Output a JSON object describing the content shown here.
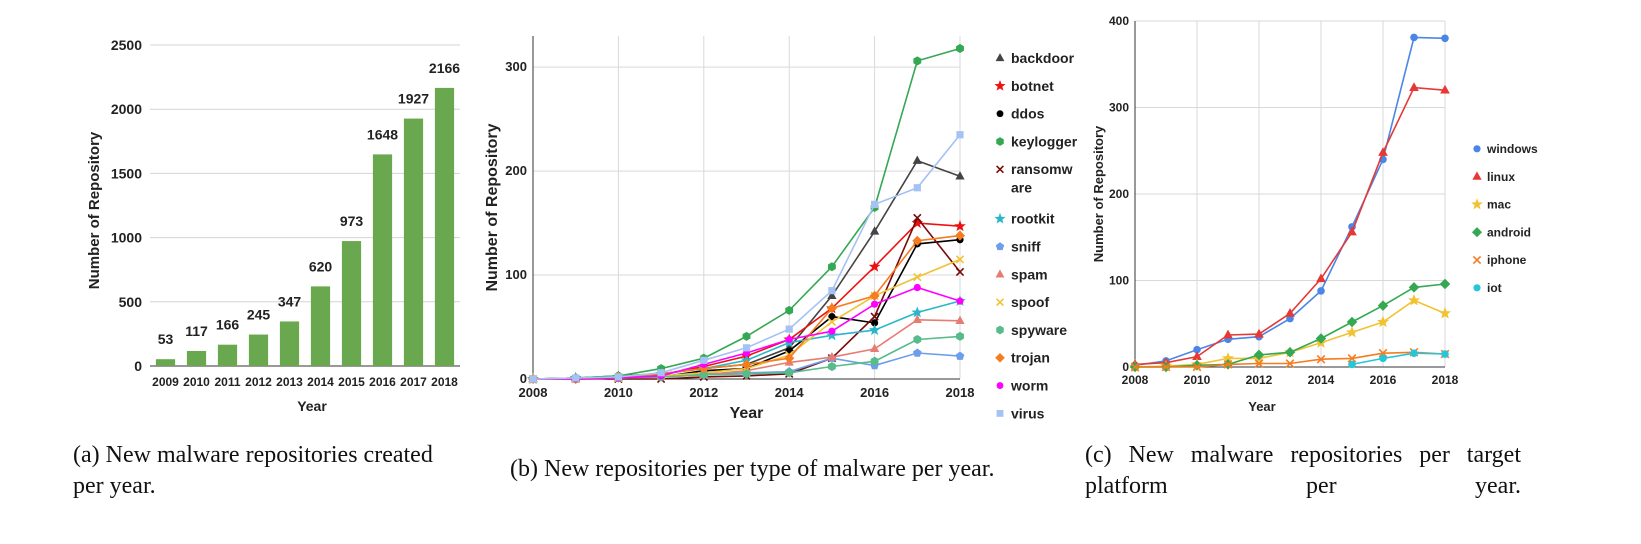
{
  "chart_data": [
    {
      "type": "bar",
      "title": "",
      "xlabel": "Year",
      "ylabel": "Number of Repository",
      "categories": [
        "2009",
        "2010",
        "2011",
        "2012",
        "2013",
        "2014",
        "2015",
        "2016",
        "2017",
        "2018"
      ],
      "values": [
        53,
        117,
        166,
        245,
        347,
        620,
        973,
        1648,
        1927,
        2166
      ],
      "ylim": [
        0,
        2500
      ],
      "yticks": [
        0,
        500,
        1000,
        1500,
        2000,
        2500
      ],
      "grid": true,
      "color": "#6aa84f",
      "caption": "(a) New malware repositories created per year."
    },
    {
      "type": "line",
      "title": "",
      "xlabel": "Year",
      "ylabel": "Number of Repository",
      "x": [
        2008,
        2009,
        2010,
        2011,
        2012,
        2013,
        2014,
        2015,
        2016,
        2017,
        2018
      ],
      "xlim": [
        2008,
        2018
      ],
      "ylim": [
        0,
        330
      ],
      "xticks": [
        2008,
        2010,
        2012,
        2014,
        2016,
        2018
      ],
      "yticks": [
        0,
        100,
        200,
        300
      ],
      "grid": true,
      "legend": "right",
      "series": [
        {
          "name": "backdoor",
          "color": "#444444",
          "marker": "triangle",
          "values": [
            0,
            1,
            3,
            5,
            10,
            14,
            30,
            80,
            142,
            210,
            195
          ]
        },
        {
          "name": "botnet",
          "color": "#ee1111",
          "marker": "star",
          "values": [
            0,
            1,
            2,
            4,
            12,
            22,
            38,
            68,
            108,
            150,
            147
          ]
        },
        {
          "name": "ddos",
          "color": "#000000",
          "marker": "circle",
          "values": [
            0,
            0,
            1,
            2,
            8,
            10,
            27,
            60,
            54,
            130,
            134
          ]
        },
        {
          "name": "keylogger",
          "color": "#34a853",
          "marker": "hexagon",
          "values": [
            0,
            1,
            3,
            10,
            20,
            41,
            66,
            108,
            165,
            306,
            318
          ]
        },
        {
          "name": "ransomware",
          "label_lines": [
            "ransomw",
            "are"
          ],
          "color": "#7a0a0a",
          "marker": "x",
          "values": [
            0,
            0,
            0,
            0,
            2,
            3,
            5,
            20,
            60,
            155,
            103
          ]
        },
        {
          "name": "rootkit",
          "color": "#2ab7c9",
          "marker": "star",
          "values": [
            0,
            1,
            2,
            5,
            10,
            18,
            35,
            42,
            47,
            64,
            75
          ]
        },
        {
          "name": "sniff",
          "color": "#6d9eeb",
          "marker": "pentagon",
          "values": [
            0,
            0,
            1,
            2,
            5,
            6,
            7,
            20,
            13,
            25,
            22
          ]
        },
        {
          "name": "spam",
          "color": "#e67c73",
          "marker": "triangle",
          "values": [
            0,
            0,
            1,
            2,
            4,
            8,
            16,
            21,
            29,
            57,
            56
          ]
        },
        {
          "name": "spoof",
          "color": "#f1c232",
          "marker": "x",
          "values": [
            0,
            0,
            1,
            3,
            6,
            10,
            23,
            55,
            80,
            98,
            115
          ]
        },
        {
          "name": "spyware",
          "color": "#57bb8a",
          "marker": "hexagon",
          "values": [
            0,
            0,
            1,
            2,
            4,
            5,
            6,
            12,
            17,
            38,
            41
          ]
        },
        {
          "name": "trojan",
          "color": "#f57c20",
          "marker": "diamond",
          "values": [
            0,
            0,
            2,
            5,
            10,
            14,
            20,
            68,
            80,
            133,
            138
          ]
        },
        {
          "name": "worm",
          "color": "#ff00ff",
          "marker": "circle",
          "values": [
            0,
            0,
            1,
            3,
            14,
            25,
            38,
            46,
            72,
            88,
            75
          ]
        },
        {
          "name": "virus",
          "color": "#a4c2f4",
          "marker": "square",
          "values": [
            0,
            1,
            2,
            6,
            18,
            30,
            48,
            85,
            168,
            184,
            235
          ]
        }
      ],
      "caption": "(b) New repositories per type of malware per year."
    },
    {
      "type": "line",
      "title": "",
      "xlabel": "Year",
      "ylabel": "Number of Repository",
      "x": [
        2008,
        2009,
        2010,
        2011,
        2012,
        2013,
        2014,
        2015,
        2016,
        2017,
        2018
      ],
      "xlim": [
        2008,
        2018
      ],
      "ylim": [
        0,
        400
      ],
      "xticks": [
        2008,
        2010,
        2012,
        2014,
        2016,
        2018
      ],
      "yticks": [
        0,
        100,
        200,
        300,
        400
      ],
      "grid": true,
      "legend": "right",
      "series": [
        {
          "name": "windows",
          "color": "#4a86e8",
          "marker": "circle",
          "values": [
            2,
            7,
            20,
            32,
            35,
            56,
            88,
            162,
            240,
            381,
            380
          ]
        },
        {
          "name": "linux",
          "color": "#e53935",
          "marker": "triangle",
          "values": [
            3,
            5,
            12,
            37,
            38,
            62,
            102,
            156,
            248,
            323,
            320
          ]
        },
        {
          "name": "mac",
          "color": "#f1c232",
          "marker": "star",
          "values": [
            0,
            1,
            3,
            10,
            10,
            17,
            28,
            40,
            52,
            77,
            62
          ]
        },
        {
          "name": "android",
          "color": "#34a853",
          "marker": "diamond",
          "values": [
            0,
            0,
            2,
            3,
            14,
            17,
            33,
            52,
            71,
            92,
            96
          ]
        },
        {
          "name": "iphone",
          "color": "#f57c20",
          "marker": "x",
          "values": [
            0,
            0,
            0,
            3,
            4,
            4,
            9,
            10,
            16,
            17,
            15
          ]
        },
        {
          "name": "iot",
          "color": "#26c6da",
          "marker": "circle",
          "values": [
            null,
            null,
            null,
            null,
            null,
            null,
            null,
            3,
            10,
            16,
            15
          ]
        }
      ],
      "caption": "(c) New malware repositories per target platform per year."
    }
  ]
}
